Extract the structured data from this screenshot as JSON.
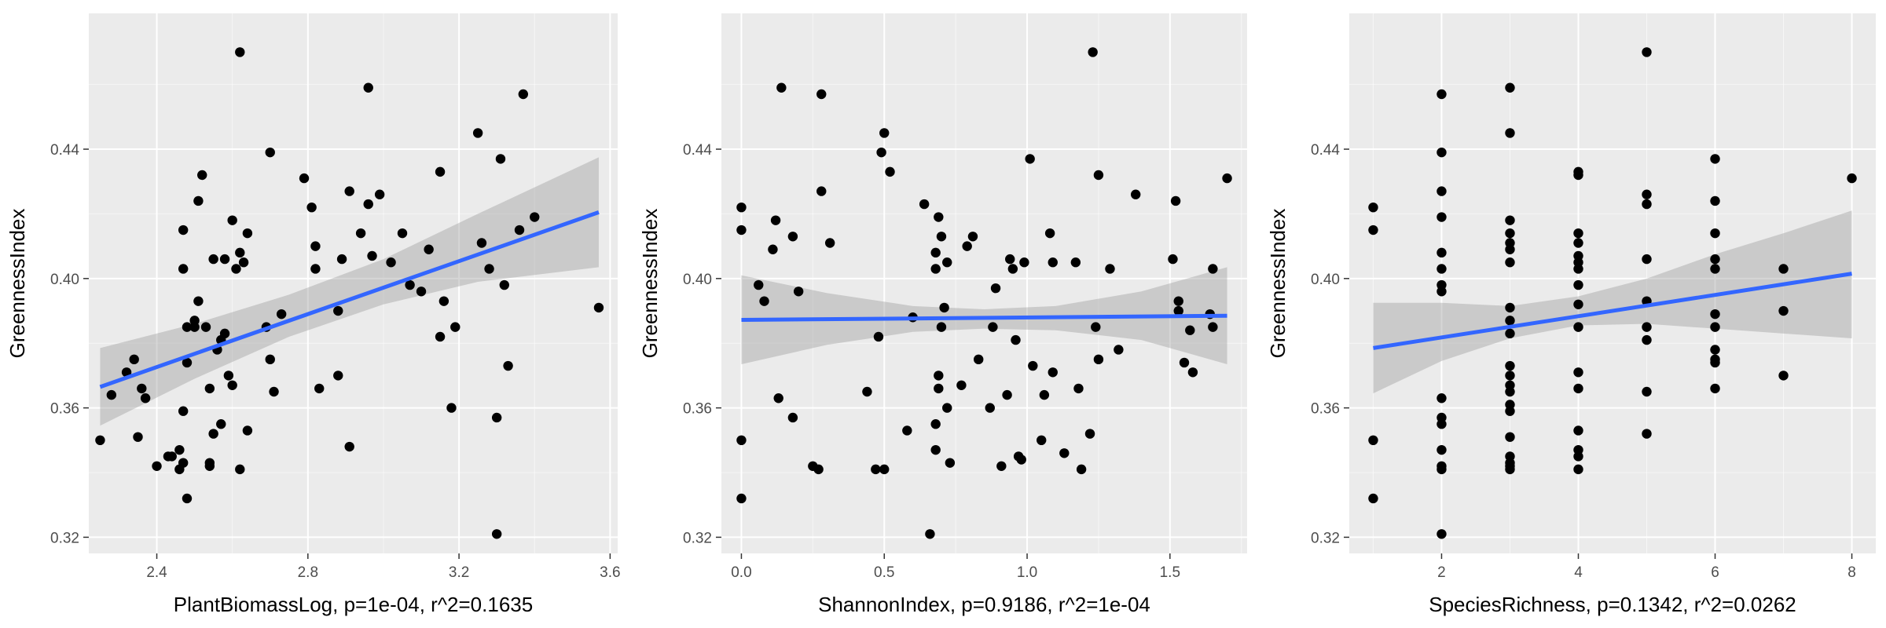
{
  "colors": {
    "panel_background": "#ebebeb",
    "grid_major": "#ffffff",
    "points": "#000000",
    "fit_line": "#3366ff",
    "confidence_band": "#999999"
  },
  "chart_data": [
    {
      "type": "scatter",
      "xlabel": "PlantBiomassLog, p=1e-04, r^2=0.1635",
      "ylabel": "GreennessIndex",
      "xlim": [
        2.22,
        3.62
      ],
      "ylim": [
        0.315,
        0.482
      ],
      "xticks": [
        2.4,
        2.8,
        3.2,
        3.6
      ],
      "xtick_labels": [
        "2.4",
        "2.8",
        "3.2",
        "3.6"
      ],
      "yticks": [
        0.32,
        0.36,
        0.4,
        0.44
      ],
      "ytick_labels": [
        "0.32",
        "0.36",
        "0.40",
        "0.44"
      ],
      "grid": true,
      "points": [
        [
          2.25,
          0.35
        ],
        [
          2.28,
          0.364
        ],
        [
          2.32,
          0.371
        ],
        [
          2.34,
          0.375
        ],
        [
          2.35,
          0.351
        ],
        [
          2.36,
          0.366
        ],
        [
          2.37,
          0.363
        ],
        [
          2.4,
          0.342
        ],
        [
          2.43,
          0.345
        ],
        [
          2.44,
          0.345
        ],
        [
          2.46,
          0.347
        ],
        [
          2.46,
          0.341
        ],
        [
          2.47,
          0.343
        ],
        [
          2.47,
          0.359
        ],
        [
          2.47,
          0.403
        ],
        [
          2.47,
          0.415
        ],
        [
          2.48,
          0.332
        ],
        [
          2.48,
          0.374
        ],
        [
          2.48,
          0.385
        ],
        [
          2.5,
          0.385
        ],
        [
          2.5,
          0.387
        ],
        [
          2.51,
          0.393
        ],
        [
          2.51,
          0.424
        ],
        [
          2.52,
          0.432
        ],
        [
          2.53,
          0.385
        ],
        [
          2.54,
          0.342
        ],
        [
          2.54,
          0.343
        ],
        [
          2.54,
          0.366
        ],
        [
          2.55,
          0.352
        ],
        [
          2.55,
          0.406
        ],
        [
          2.56,
          0.378
        ],
        [
          2.57,
          0.355
        ],
        [
          2.57,
          0.381
        ],
        [
          2.58,
          0.383
        ],
        [
          2.58,
          0.406
        ],
        [
          2.59,
          0.37
        ],
        [
          2.6,
          0.418
        ],
        [
          2.6,
          0.367
        ],
        [
          2.61,
          0.403
        ],
        [
          2.62,
          0.341
        ],
        [
          2.62,
          0.408
        ],
        [
          2.62,
          0.47
        ],
        [
          2.63,
          0.405
        ],
        [
          2.64,
          0.414
        ],
        [
          2.64,
          0.353
        ],
        [
          2.69,
          0.385
        ],
        [
          2.7,
          0.439
        ],
        [
          2.7,
          0.375
        ],
        [
          2.71,
          0.365
        ],
        [
          2.73,
          0.389
        ],
        [
          2.79,
          0.431
        ],
        [
          2.81,
          0.422
        ],
        [
          2.82,
          0.41
        ],
        [
          2.82,
          0.403
        ],
        [
          2.83,
          0.366
        ],
        [
          2.88,
          0.37
        ],
        [
          2.88,
          0.39
        ],
        [
          2.89,
          0.406
        ],
        [
          2.91,
          0.427
        ],
        [
          2.91,
          0.348
        ],
        [
          2.94,
          0.414
        ],
        [
          2.96,
          0.459
        ],
        [
          2.96,
          0.423
        ],
        [
          2.97,
          0.407
        ],
        [
          2.99,
          0.426
        ],
        [
          3.02,
          0.405
        ],
        [
          3.05,
          0.414
        ],
        [
          3.07,
          0.398
        ],
        [
          3.1,
          0.396
        ],
        [
          3.12,
          0.409
        ],
        [
          3.15,
          0.382
        ],
        [
          3.15,
          0.433
        ],
        [
          3.16,
          0.393
        ],
        [
          3.18,
          0.36
        ],
        [
          3.19,
          0.385
        ],
        [
          3.25,
          0.445
        ],
        [
          3.26,
          0.411
        ],
        [
          3.28,
          0.403
        ],
        [
          3.3,
          0.321
        ],
        [
          3.3,
          0.357
        ],
        [
          3.31,
          0.437
        ],
        [
          3.32,
          0.398
        ],
        [
          3.33,
          0.373
        ],
        [
          3.36,
          0.415
        ],
        [
          3.37,
          0.457
        ],
        [
          3.4,
          0.419
        ],
        [
          3.57,
          0.391
        ]
      ],
      "fit_line": [
        [
          2.25,
          0.3665
        ],
        [
          3.57,
          0.4205
        ]
      ],
      "confidence_band": {
        "x": [
          2.25,
          2.5,
          2.75,
          3.0,
          3.25,
          3.57
        ],
        "lower": [
          0.3545,
          0.369,
          0.382,
          0.392,
          0.399,
          0.4035
        ],
        "upper": [
          0.3785,
          0.386,
          0.395,
          0.406,
          0.42,
          0.4375
        ]
      }
    },
    {
      "type": "scatter",
      "xlabel": "ShannonIndex, p=0.9186, r^2=1e-04",
      "ylabel": "GreennessIndex",
      "xlim": [
        -0.07,
        1.77
      ],
      "ylim": [
        0.315,
        0.482
      ],
      "xticks": [
        0.0,
        0.5,
        1.0,
        1.5
      ],
      "xtick_labels": [
        "0.0",
        "0.5",
        "1.0",
        "1.5"
      ],
      "yticks": [
        0.32,
        0.36,
        0.4,
        0.44
      ],
      "ytick_labels": [
        "0.32",
        "0.36",
        "0.40",
        "0.44"
      ],
      "grid": true,
      "points": [
        [
          0.0,
          0.422
        ],
        [
          0.0,
          0.415
        ],
        [
          0.0,
          0.35
        ],
        [
          0.0,
          0.332
        ],
        [
          0.06,
          0.398
        ],
        [
          0.08,
          0.393
        ],
        [
          0.11,
          0.409
        ],
        [
          0.12,
          0.418
        ],
        [
          0.13,
          0.363
        ],
        [
          0.14,
          0.459
        ],
        [
          0.18,
          0.413
        ],
        [
          0.18,
          0.357
        ],
        [
          0.2,
          0.396
        ],
        [
          0.25,
          0.342
        ],
        [
          0.27,
          0.341
        ],
        [
          0.28,
          0.457
        ],
        [
          0.28,
          0.427
        ],
        [
          0.31,
          0.411
        ],
        [
          0.44,
          0.365
        ],
        [
          0.47,
          0.341
        ],
        [
          0.48,
          0.382
        ],
        [
          0.49,
          0.439
        ],
        [
          0.5,
          0.445
        ],
        [
          0.5,
          0.341
        ],
        [
          0.52,
          0.433
        ],
        [
          0.58,
          0.353
        ],
        [
          0.6,
          0.388
        ],
        [
          0.64,
          0.423
        ],
        [
          0.66,
          0.321
        ],
        [
          0.68,
          0.408
        ],
        [
          0.68,
          0.403
        ],
        [
          0.68,
          0.347
        ],
        [
          0.68,
          0.355
        ],
        [
          0.69,
          0.419
        ],
        [
          0.69,
          0.37
        ],
        [
          0.69,
          0.366
        ],
        [
          0.7,
          0.413
        ],
        [
          0.7,
          0.385
        ],
        [
          0.71,
          0.391
        ],
        [
          0.72,
          0.405
        ],
        [
          0.72,
          0.36
        ],
        [
          0.73,
          0.343
        ],
        [
          0.77,
          0.367
        ],
        [
          0.79,
          0.41
        ],
        [
          0.81,
          0.413
        ],
        [
          0.83,
          0.375
        ],
        [
          0.87,
          0.36
        ],
        [
          0.88,
          0.385
        ],
        [
          0.89,
          0.397
        ],
        [
          0.91,
          0.342
        ],
        [
          0.93,
          0.364
        ],
        [
          0.94,
          0.406
        ],
        [
          0.95,
          0.403
        ],
        [
          0.96,
          0.381
        ],
        [
          0.97,
          0.345
        ],
        [
          0.98,
          0.344
        ],
        [
          0.99,
          0.405
        ],
        [
          1.01,
          0.437
        ],
        [
          1.02,
          0.373
        ],
        [
          1.05,
          0.35
        ],
        [
          1.06,
          0.364
        ],
        [
          1.08,
          0.414
        ],
        [
          1.09,
          0.405
        ],
        [
          1.09,
          0.371
        ],
        [
          1.13,
          0.346
        ],
        [
          1.17,
          0.405
        ],
        [
          1.18,
          0.366
        ],
        [
          1.19,
          0.341
        ],
        [
          1.22,
          0.352
        ],
        [
          1.23,
          0.47
        ],
        [
          1.24,
          0.385
        ],
        [
          1.25,
          0.432
        ],
        [
          1.25,
          0.375
        ],
        [
          1.29,
          0.403
        ],
        [
          1.32,
          0.378
        ],
        [
          1.38,
          0.426
        ],
        [
          1.51,
          0.406
        ],
        [
          1.52,
          0.424
        ],
        [
          1.53,
          0.393
        ],
        [
          1.53,
          0.39
        ],
        [
          1.55,
          0.374
        ],
        [
          1.57,
          0.384
        ],
        [
          1.58,
          0.371
        ],
        [
          1.64,
          0.389
        ],
        [
          1.65,
          0.403
        ],
        [
          1.65,
          0.385
        ],
        [
          1.7,
          0.431
        ]
      ],
      "fit_line": [
        [
          0.0,
          0.3872
        ],
        [
          1.7,
          0.3885
        ]
      ],
      "confidence_band": {
        "x": [
          0.0,
          0.3,
          0.6,
          0.85,
          1.1,
          1.4,
          1.7
        ],
        "lower": [
          0.3735,
          0.3795,
          0.3835,
          0.3845,
          0.384,
          0.381,
          0.3735
        ],
        "upper": [
          0.401,
          0.3955,
          0.3915,
          0.3905,
          0.3915,
          0.396,
          0.4035
        ]
      }
    },
    {
      "type": "scatter",
      "xlabel": "SpeciesRichness, p=0.1342, r^2=0.0262",
      "ylabel": "GreennessIndex",
      "xlim": [
        0.65,
        8.35
      ],
      "ylim": [
        0.315,
        0.482
      ],
      "xticks": [
        2,
        4,
        6,
        8
      ],
      "xtick_labels": [
        "2",
        "4",
        "6",
        "8"
      ],
      "yticks": [
        0.32,
        0.36,
        0.4,
        0.44
      ],
      "ytick_labels": [
        "0.32",
        "0.36",
        "0.40",
        "0.44"
      ],
      "grid": true,
      "points": [
        [
          1,
          0.422
        ],
        [
          1,
          0.415
        ],
        [
          1,
          0.35
        ],
        [
          1,
          0.332
        ],
        [
          2,
          0.457
        ],
        [
          2,
          0.439
        ],
        [
          2,
          0.427
        ],
        [
          2,
          0.419
        ],
        [
          2,
          0.408
        ],
        [
          2,
          0.403
        ],
        [
          2,
          0.398
        ],
        [
          2,
          0.396
        ],
        [
          2,
          0.363
        ],
        [
          2,
          0.357
        ],
        [
          2,
          0.355
        ],
        [
          2,
          0.347
        ],
        [
          2,
          0.342
        ],
        [
          2,
          0.341
        ],
        [
          2,
          0.321
        ],
        [
          3,
          0.459
        ],
        [
          3,
          0.445
        ],
        [
          3,
          0.418
        ],
        [
          3,
          0.414
        ],
        [
          3,
          0.411
        ],
        [
          3,
          0.409
        ],
        [
          3,
          0.405
        ],
        [
          3,
          0.391
        ],
        [
          3,
          0.387
        ],
        [
          3,
          0.383
        ],
        [
          3,
          0.373
        ],
        [
          3,
          0.37
        ],
        [
          3,
          0.367
        ],
        [
          3,
          0.365
        ],
        [
          3,
          0.361
        ],
        [
          3,
          0.359
        ],
        [
          3,
          0.351
        ],
        [
          3,
          0.345
        ],
        [
          3,
          0.343
        ],
        [
          3,
          0.342
        ],
        [
          3,
          0.341
        ],
        [
          4,
          0.433
        ],
        [
          4,
          0.432
        ],
        [
          4,
          0.414
        ],
        [
          4,
          0.411
        ],
        [
          4,
          0.407
        ],
        [
          4,
          0.405
        ],
        [
          4,
          0.403
        ],
        [
          4,
          0.398
        ],
        [
          4,
          0.392
        ],
        [
          4,
          0.385
        ],
        [
          4,
          0.371
        ],
        [
          4,
          0.366
        ],
        [
          4,
          0.353
        ],
        [
          4,
          0.347
        ],
        [
          4,
          0.345
        ],
        [
          4,
          0.341
        ],
        [
          5,
          0.47
        ],
        [
          5,
          0.426
        ],
        [
          5,
          0.423
        ],
        [
          5,
          0.406
        ],
        [
          5,
          0.393
        ],
        [
          5,
          0.385
        ],
        [
          5,
          0.381
        ],
        [
          5,
          0.365
        ],
        [
          5,
          0.352
        ],
        [
          6,
          0.437
        ],
        [
          6,
          0.424
        ],
        [
          6,
          0.414
        ],
        [
          6,
          0.406
        ],
        [
          6,
          0.403
        ],
        [
          6,
          0.389
        ],
        [
          6,
          0.385
        ],
        [
          6,
          0.378
        ],
        [
          6,
          0.375
        ],
        [
          6,
          0.374
        ],
        [
          6,
          0.366
        ],
        [
          7,
          0.403
        ],
        [
          7,
          0.39
        ],
        [
          7,
          0.37
        ],
        [
          8,
          0.431
        ]
      ],
      "fit_line": [
        [
          1,
          0.3785
        ],
        [
          8,
          0.4015
        ]
      ],
      "confidence_band": {
        "x": [
          1.0,
          2.0,
          3.0,
          4.0,
          5.0,
          6.0,
          7.0,
          8.0
        ],
        "lower": [
          0.3645,
          0.3745,
          0.3815,
          0.3855,
          0.386,
          0.3845,
          0.383,
          0.3815
        ],
        "upper": [
          0.3925,
          0.3925,
          0.3915,
          0.3945,
          0.4,
          0.4075,
          0.414,
          0.421
        ]
      }
    }
  ]
}
